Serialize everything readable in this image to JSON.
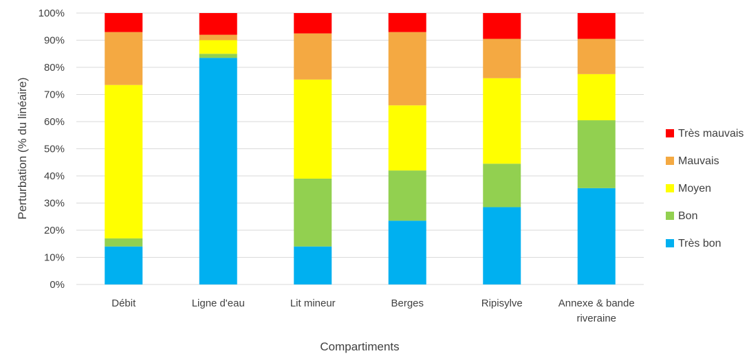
{
  "chart_data": {
    "type": "bar",
    "stacked": true,
    "normalized": true,
    "title": "",
    "xlabel": "Compartiments",
    "ylabel": "Perturbation (% du linéaire)",
    "ylim": [
      0,
      100
    ],
    "yticks": [
      "0%",
      "10%",
      "20%",
      "30%",
      "40%",
      "50%",
      "60%",
      "70%",
      "80%",
      "90%",
      "100%"
    ],
    "grid": true,
    "legend_position": "right",
    "categories": [
      [
        "Débit"
      ],
      [
        "Ligne d'eau"
      ],
      [
        "Lit mineur"
      ],
      [
        "Berges"
      ],
      [
        "Ripisylve"
      ],
      [
        "Annexe & bande",
        "riveraine"
      ]
    ],
    "series": [
      {
        "name": "Très bon",
        "color": "#00B0F0",
        "values": [
          14,
          83.5,
          14,
          23.5,
          28.5,
          35.5
        ]
      },
      {
        "name": "Bon",
        "color": "#92D050",
        "values": [
          3,
          1.5,
          25,
          18.5,
          16,
          25
        ]
      },
      {
        "name": "Moyen",
        "color": "#FFFF00",
        "values": [
          56.5,
          5,
          36.5,
          24,
          31.5,
          17
        ]
      },
      {
        "name": "Mauvais",
        "color": "#F4A942",
        "values": [
          19.5,
          2,
          17,
          27,
          14.5,
          13
        ]
      },
      {
        "name": "Très mauvais",
        "color": "#FF0000",
        "values": [
          7,
          8,
          7.5,
          7,
          9.5,
          9.5
        ]
      }
    ],
    "legend_order": [
      "Très mauvais",
      "Mauvais",
      "Moyen",
      "Bon",
      "Très bon"
    ]
  }
}
